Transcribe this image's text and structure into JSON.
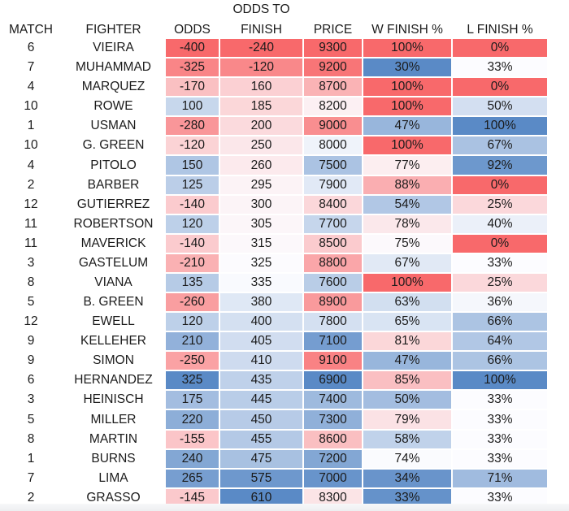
{
  "chart_data": {
    "type": "table",
    "title": "",
    "columns": [
      {
        "key": "match",
        "label": "MATCH",
        "heat": false
      },
      {
        "key": "fighter",
        "label": "FIGHTER",
        "heat": false
      },
      {
        "key": "odds",
        "label": "ODDS",
        "heat": true,
        "red_end": "min"
      },
      {
        "key": "odds_to_finish",
        "label": "FINISH",
        "label_top": "ODDS TO",
        "heat": true,
        "red_end": "min"
      },
      {
        "key": "price",
        "label": "PRICE",
        "heat": true,
        "red_end": "max"
      },
      {
        "key": "w_finish",
        "label": "W FINISH %",
        "heat": true,
        "red_end": "max",
        "format": "percent"
      },
      {
        "key": "l_finish",
        "label": "L FINISH %",
        "heat": true,
        "red_end": "min",
        "format": "percent"
      }
    ],
    "rows": [
      {
        "match": 6,
        "fighter": "VIEIRA",
        "odds": -400,
        "odds_to_finish": -240,
        "price": 9300,
        "w_finish": 100,
        "l_finish": 0
      },
      {
        "match": 7,
        "fighter": "MUHAMMAD",
        "odds": -325,
        "odds_to_finish": -120,
        "price": 9200,
        "w_finish": 30,
        "l_finish": 33
      },
      {
        "match": 4,
        "fighter": "MARQUEZ",
        "odds": -170,
        "odds_to_finish": 160,
        "price": 8700,
        "w_finish": 100,
        "l_finish": 0
      },
      {
        "match": 10,
        "fighter": "ROWE",
        "odds": 100,
        "odds_to_finish": 185,
        "price": 8200,
        "w_finish": 100,
        "l_finish": 50
      },
      {
        "match": 1,
        "fighter": "USMAN",
        "odds": -280,
        "odds_to_finish": 200,
        "price": 9000,
        "w_finish": 47,
        "l_finish": 100
      },
      {
        "match": 10,
        "fighter": "G. GREEN",
        "odds": -120,
        "odds_to_finish": 250,
        "price": 8000,
        "w_finish": 100,
        "l_finish": 67
      },
      {
        "match": 4,
        "fighter": "PITOLO",
        "odds": 150,
        "odds_to_finish": 260,
        "price": 7500,
        "w_finish": 77,
        "l_finish": 92
      },
      {
        "match": 2,
        "fighter": "BARBER",
        "odds": 125,
        "odds_to_finish": 295,
        "price": 7900,
        "w_finish": 88,
        "l_finish": 0
      },
      {
        "match": 12,
        "fighter": "GUTIERREZ",
        "odds": -140,
        "odds_to_finish": 300,
        "price": 8400,
        "w_finish": 54,
        "l_finish": 25
      },
      {
        "match": 11,
        "fighter": "ROBERTSON",
        "odds": 120,
        "odds_to_finish": 305,
        "price": 7700,
        "w_finish": 78,
        "l_finish": 40
      },
      {
        "match": 11,
        "fighter": "MAVERICK",
        "odds": -140,
        "odds_to_finish": 315,
        "price": 8500,
        "w_finish": 75,
        "l_finish": 0
      },
      {
        "match": 3,
        "fighter": "GASTELUM",
        "odds": -210,
        "odds_to_finish": 325,
        "price": 8800,
        "w_finish": 67,
        "l_finish": 33
      },
      {
        "match": 8,
        "fighter": "VIANA",
        "odds": 135,
        "odds_to_finish": 335,
        "price": 7600,
        "w_finish": 100,
        "l_finish": 25
      },
      {
        "match": 5,
        "fighter": "B. GREEN",
        "odds": -260,
        "odds_to_finish": 380,
        "price": 8900,
        "w_finish": 63,
        "l_finish": 36
      },
      {
        "match": 12,
        "fighter": "EWELL",
        "odds": 120,
        "odds_to_finish": 400,
        "price": 7800,
        "w_finish": 65,
        "l_finish": 66
      },
      {
        "match": 9,
        "fighter": "KELLEHER",
        "odds": 210,
        "odds_to_finish": 405,
        "price": 7100,
        "w_finish": 81,
        "l_finish": 64
      },
      {
        "match": 9,
        "fighter": "SIMON",
        "odds": -250,
        "odds_to_finish": 410,
        "price": 9100,
        "w_finish": 47,
        "l_finish": 66
      },
      {
        "match": 6,
        "fighter": "HERNANDEZ",
        "odds": 325,
        "odds_to_finish": 435,
        "price": 6900,
        "w_finish": 85,
        "l_finish": 100
      },
      {
        "match": 3,
        "fighter": "HEINISCH",
        "odds": 175,
        "odds_to_finish": 445,
        "price": 7400,
        "w_finish": 50,
        "l_finish": 33
      },
      {
        "match": 5,
        "fighter": "MILLER",
        "odds": 220,
        "odds_to_finish": 450,
        "price": 7300,
        "w_finish": 79,
        "l_finish": 33
      },
      {
        "match": 8,
        "fighter": "MARTIN",
        "odds": -155,
        "odds_to_finish": 455,
        "price": 8600,
        "w_finish": 58,
        "l_finish": 33
      },
      {
        "match": 1,
        "fighter": "BURNS",
        "odds": 240,
        "odds_to_finish": 475,
        "price": 7200,
        "w_finish": 74,
        "l_finish": 33
      },
      {
        "match": 7,
        "fighter": "LIMA",
        "odds": 265,
        "odds_to_finish": 575,
        "price": 7000,
        "w_finish": 34,
        "l_finish": 71
      },
      {
        "match": 2,
        "fighter": "GRASSO",
        "odds": -145,
        "odds_to_finish": 610,
        "price": 8300,
        "w_finish": 33,
        "l_finish": 33
      }
    ],
    "color_scale": {
      "red": "#F8696B",
      "mid": "#FCFCFF",
      "blue": "#5A8AC6",
      "midpoint": "50th-percentile"
    },
    "colors": {
      "page_bg": "#ffffff",
      "text": "#1b1b1b",
      "cell_separator": "#ffffff",
      "bottom_band": "#edeff1"
    },
    "layout": {
      "grid": "off",
      "legend": "none"
    }
  }
}
